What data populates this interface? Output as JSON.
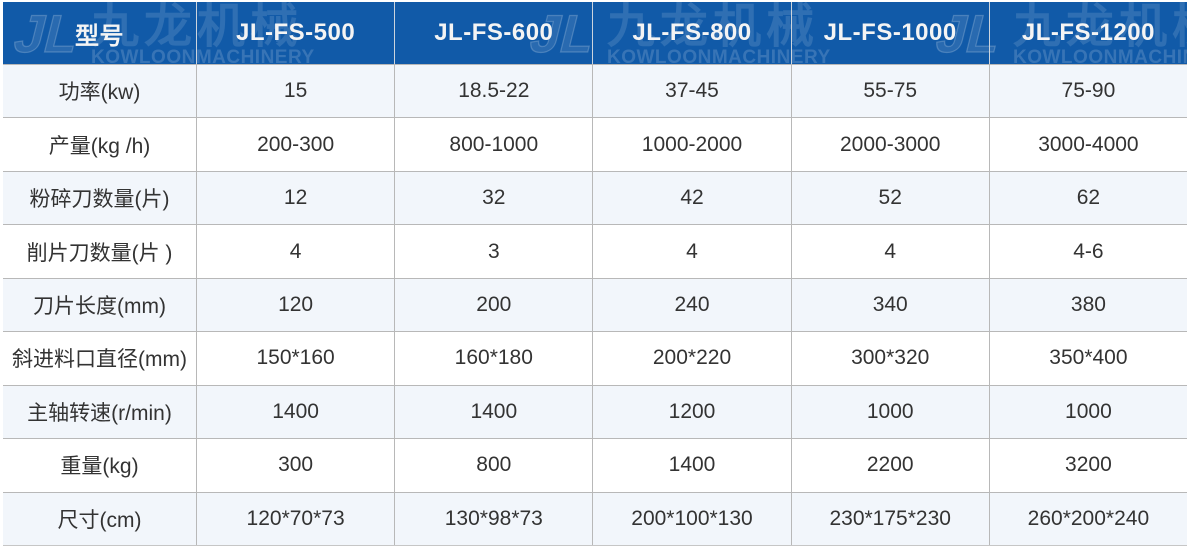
{
  "brand": {
    "watermark_cn": "九龙机械",
    "watermark_en": "KOWLOONMACHINERY",
    "logo_monogram": "JL"
  },
  "chart_data": {
    "type": "table",
    "title": "",
    "columns": [
      "型号",
      "JL-FS-500",
      "JL-FS-600",
      "JL-FS-800",
      "JL-FS-1000",
      "JL-FS-1200"
    ],
    "rows": [
      {
        "label": "功率(kw)",
        "values": [
          "15",
          "18.5-22",
          "37-45",
          "55-75",
          "75-90"
        ]
      },
      {
        "label": "产量(kg /h)",
        "values": [
          "200-300",
          "800-1000",
          "1000-2000",
          "2000-3000",
          "3000-4000"
        ]
      },
      {
        "label": "粉碎刀数量(片)",
        "values": [
          "12",
          "32",
          "42",
          "52",
          "62"
        ]
      },
      {
        "label": "削片刀数量(片 )",
        "values": [
          "4",
          "3",
          "4",
          "4",
          "4-6"
        ]
      },
      {
        "label": "刀片长度(mm)",
        "values": [
          "120",
          "200",
          "240",
          "340",
          "380"
        ]
      },
      {
        "label": "斜进料口直径(mm)",
        "values": [
          "150*160",
          "160*180",
          "200*220",
          "300*320",
          "350*400"
        ]
      },
      {
        "label": "主轴转速(r/min)",
        "values": [
          "1400",
          "1400",
          "1200",
          "1000",
          "1000"
        ]
      },
      {
        "label": "重量(kg)",
        "values": [
          "300",
          "800",
          "1400",
          "2200",
          "3200"
        ]
      },
      {
        "label": "尺寸(cm)",
        "values": [
          "120*70*73",
          "130*98*73",
          "200*100*130",
          "230*175*230",
          "260*200*240"
        ]
      }
    ]
  },
  "colors": {
    "header_bg": "#115aa8",
    "header_text": "#f4f4f4",
    "row_alt_bg": "#f2f6fb",
    "row_bg": "#ffffff",
    "grid_border": "#b8b8b8",
    "header_divider": "#ccd4dd",
    "body_text": "#333333"
  }
}
